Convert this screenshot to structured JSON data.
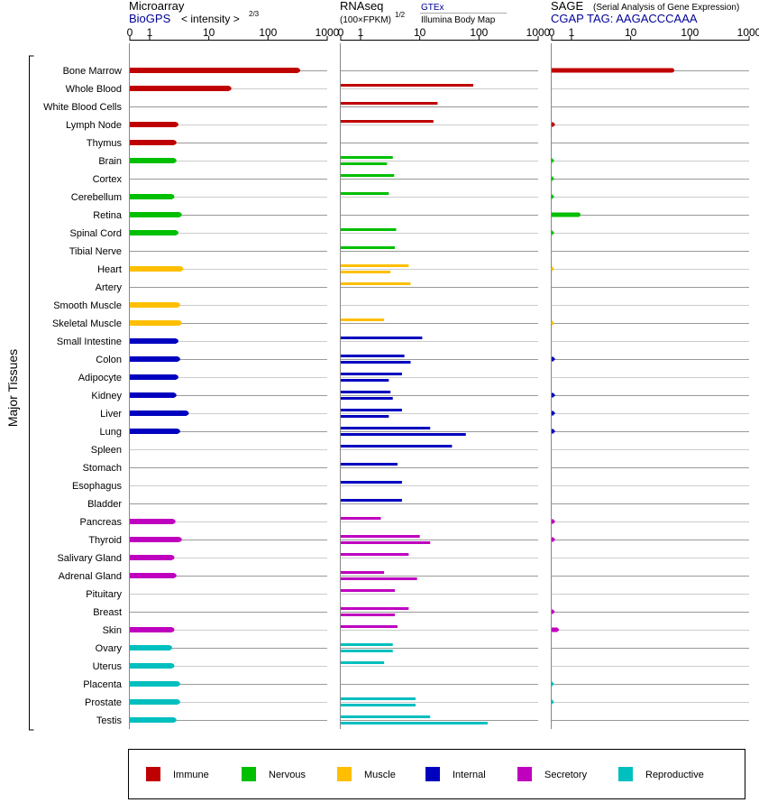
{
  "y_axis_title": "Major Tissues",
  "panels": [
    {
      "title": "Microarray",
      "subtitle": "BioGPS",
      "note": "< intensity >",
      "note_exp": "2/3"
    },
    {
      "title": "RNAseq",
      "note": "(100×FPKM)",
      "note_exp": "1/2",
      "source_top": "GTEx",
      "source_bottom": "Illumina Body Map"
    },
    {
      "title": "SAGE",
      "title_note": "(Serial Analysis of Gene Expression)",
      "subtitle": "CGAP TAG: AAGACCCAAA"
    }
  ],
  "colors": {
    "Immune": "#bf0000",
    "Nervous": "#00bf00",
    "Muscle": "#ffbf00",
    "Internal": "#0000bf",
    "Secretory": "#bf00bf",
    "Reproductive": "#00bfbf"
  },
  "legend": [
    "Immune",
    "Nervous",
    "Muscle",
    "Internal",
    "Secretory",
    "Reproductive"
  ],
  "chart_data": {
    "type": "bar",
    "orientation": "horizontal",
    "x_scale": "log-like (0 to 1000)",
    "x_ticks": [
      "0",
      "1",
      "10",
      "100",
      "1000"
    ],
    "xlim": [
      0,
      1000
    ],
    "categories": [
      "Bone Marrow",
      "Whole Blood",
      "White Blood Cells",
      "Lymph Node",
      "Thymus",
      "Brain",
      "Cortex",
      "Cerebellum",
      "Retina",
      "Spinal Cord",
      "Tibial Nerve",
      "Heart",
      "Artery",
      "Smooth Muscle",
      "Skeletal Muscle",
      "Small Intestine",
      "Colon",
      "Adipocyte",
      "Kidney",
      "Liver",
      "Lung",
      "Spleen",
      "Stomach",
      "Esophagus",
      "Bladder",
      "Pancreas",
      "Thyroid",
      "Salivary Gland",
      "Adrenal Gland",
      "Pituitary",
      "Breast",
      "Skin",
      "Ovary",
      "Uterus",
      "Placenta",
      "Prostate",
      "Testis"
    ],
    "groups": [
      "Immune",
      "Immune",
      "Immune",
      "Immune",
      "Immune",
      "Nervous",
      "Nervous",
      "Nervous",
      "Nervous",
      "Nervous",
      "Nervous",
      "Muscle",
      "Muscle",
      "Muscle",
      "Muscle",
      "Internal",
      "Internal",
      "Internal",
      "Internal",
      "Internal",
      "Internal",
      "Internal",
      "Internal",
      "Internal",
      "Internal",
      "Secretory",
      "Secretory",
      "Secretory",
      "Secretory",
      "Secretory",
      "Secretory",
      "Secretory",
      "Reproductive",
      "Reproductive",
      "Reproductive",
      "Reproductive",
      "Reproductive"
    ],
    "series": [
      {
        "name": "Microarray",
        "values": [
          320,
          22,
          null,
          2.8,
          2.6,
          2.6,
          null,
          2.4,
          3.2,
          2.8,
          null,
          3.4,
          null,
          3.0,
          3.2,
          2.8,
          3.0,
          2.8,
          2.6,
          4.2,
          3.0,
          null,
          null,
          null,
          null,
          2.5,
          3.2,
          2.4,
          2.6,
          null,
          null,
          2.4,
          2.2,
          2.4,
          3.0,
          3.0,
          2.6
        ]
      },
      {
        "name": "RNAseq GTEx",
        "values": [
          null,
          80,
          20,
          17,
          null,
          3.5,
          3.7,
          3.0,
          null,
          4.0,
          3.8,
          6.5,
          7.0,
          null,
          2.5,
          11,
          5.5,
          5.0,
          3.2,
          5.0,
          15,
          35,
          4.2,
          5.0,
          5.0,
          2.2,
          10,
          6.5,
          2.5,
          3.8,
          6.5,
          4.2,
          3.5,
          2.5,
          null,
          8.5,
          15
        ]
      },
      {
        "name": "RNAseq Illumina Body Map",
        "values": [
          null,
          null,
          null,
          null,
          null,
          2.8,
          null,
          null,
          null,
          null,
          null,
          3.2,
          null,
          null,
          null,
          null,
          7.0,
          3.0,
          3.5,
          3.0,
          60,
          null,
          null,
          null,
          null,
          null,
          15,
          null,
          9.0,
          null,
          3.8,
          null,
          3.5,
          null,
          null,
          8.5,
          140
        ]
      },
      {
        "name": "SAGE",
        "values": [
          50,
          null,
          null,
          0.1,
          null,
          0.05,
          0.05,
          0.05,
          1.3,
          0.05,
          null,
          0.04,
          null,
          null,
          0.04,
          null,
          0.1,
          null,
          0.1,
          0.1,
          0.1,
          null,
          null,
          null,
          null,
          0.1,
          0.1,
          null,
          null,
          null,
          0.08,
          0.3,
          null,
          null,
          0.04,
          0.04,
          null
        ]
      }
    ]
  }
}
